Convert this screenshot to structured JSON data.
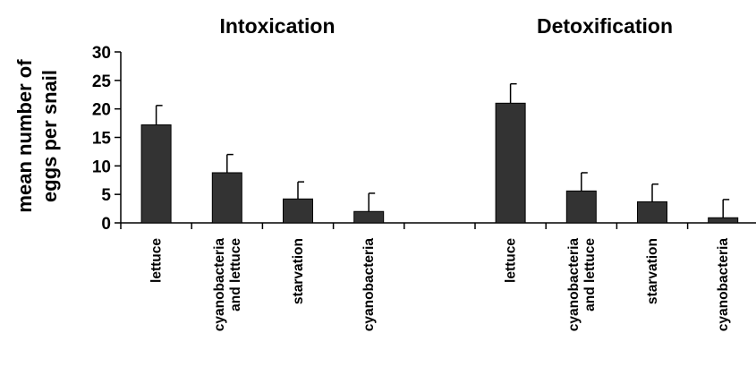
{
  "chart_data": {
    "type": "bar",
    "ylabel_lines": [
      "mean number of",
      "eggs per snail"
    ],
    "ylim": [
      0,
      30
    ],
    "yticks": [
      0,
      5,
      10,
      15,
      20,
      25,
      30
    ],
    "panels": [
      {
        "title": "Intoxication",
        "categories": [
          [
            "lettuce"
          ],
          [
            "cyanobacteria",
            "and lettuce"
          ],
          [
            "starvation"
          ],
          [
            "cyanobacteria"
          ]
        ],
        "values": [
          17.2,
          8.8,
          4.2,
          2.0
        ],
        "error": [
          3.4,
          3.2,
          3.0,
          3.2
        ]
      },
      {
        "title": "Detoxification",
        "categories": [
          [
            "lettuce"
          ],
          [
            "cyanobacteria",
            "and lettuce"
          ],
          [
            "starvation"
          ],
          [
            "cyanobacteria"
          ]
        ],
        "values": [
          21.0,
          5.6,
          3.7,
          0.9
        ],
        "error": [
          3.4,
          3.2,
          3.1,
          3.2
        ]
      }
    ],
    "bar_color": "#333333",
    "grid": false,
    "legend": "none"
  }
}
